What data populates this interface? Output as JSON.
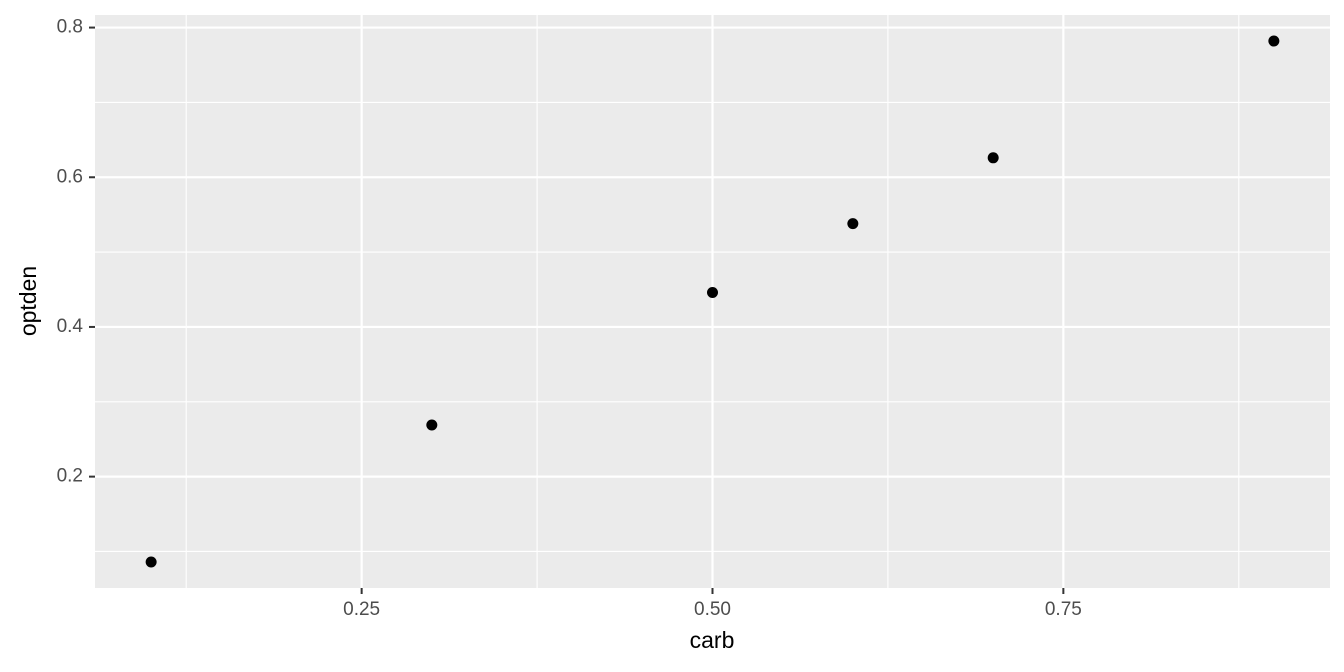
{
  "chart_data": {
    "type": "scatter",
    "x_label": "carb",
    "y_label": "optden",
    "series": [
      {
        "color": "#000000",
        "x": [
          0.1,
          0.3,
          0.5,
          0.6,
          0.7,
          0.9
        ],
        "values": [
          0.086,
          0.269,
          0.446,
          0.538,
          0.626,
          0.782
        ]
      }
    ],
    "xlim": [
      0.06,
      0.94
    ],
    "ylim": [
      0.0512,
      0.8168
    ],
    "xticks": [
      0.25,
      {
        "value": 0.5,
        "label": "0.50"
      },
      0.75
    ],
    "yticks": [
      0.2,
      0.4,
      0.6,
      0.8
    ],
    "grid": true
  }
}
